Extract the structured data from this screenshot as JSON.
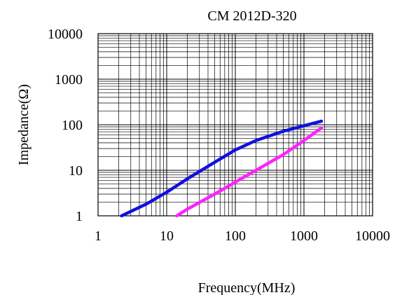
{
  "chart_data": {
    "type": "line",
    "title": "CM 2012D-320",
    "xlabel": "Frequency(MHz)",
    "ylabel": "Impedance(Ω)",
    "x_scale": "log",
    "y_scale": "log",
    "xlim": [
      1,
      10000
    ],
    "ylim": [
      1,
      10000
    ],
    "x_ticks": [
      "1",
      "10",
      "100",
      "1000",
      "10000"
    ],
    "y_ticks": [
      "10000",
      "1000",
      "100",
      "10",
      "1"
    ],
    "grid": true,
    "legend": "none",
    "series": [
      {
        "color": "#1010e0",
        "points": [
          [
            2.2,
            1.0
          ],
          [
            3,
            1.25
          ],
          [
            5,
            1.8
          ],
          [
            10,
            3.3
          ],
          [
            20,
            6.5
          ],
          [
            50,
            15
          ],
          [
            100,
            28
          ],
          [
            200,
            45
          ],
          [
            500,
            72
          ],
          [
            1000,
            95
          ],
          [
            1800,
            120
          ]
        ]
      },
      {
        "color": "#ff22ff",
        "points": [
          [
            14,
            1.0
          ],
          [
            20,
            1.4
          ],
          [
            50,
            3.0
          ],
          [
            100,
            5.5
          ],
          [
            200,
            10
          ],
          [
            500,
            22
          ],
          [
            1000,
            45
          ],
          [
            1800,
            85
          ]
        ]
      }
    ]
  }
}
